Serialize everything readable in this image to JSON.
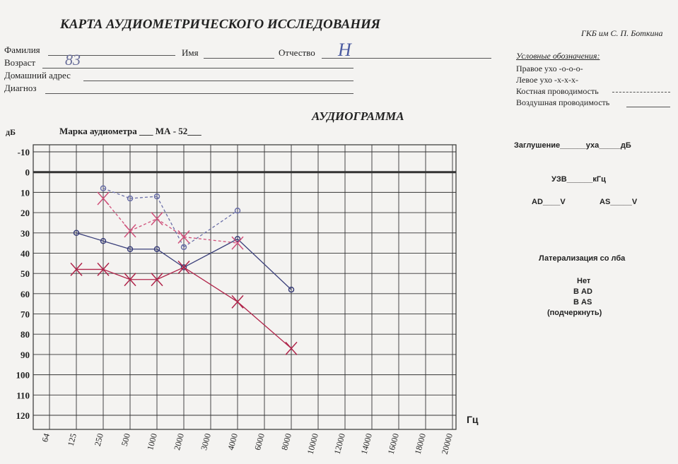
{
  "form": {
    "title": "КАРТА АУДИОМЕТРИЧЕСКОГО ИССЛЕДОВАНИЯ",
    "hospital": "ГКБ им С. П. Боткина",
    "fields": [
      "Фамилия",
      "Имя",
      "Отчество",
      "Возраст",
      "Домашний адрес",
      "Диагноз"
    ],
    "handwritten_age": "83",
    "handwritten_patronymic": "Н",
    "legend_title": "Условные обозначения:",
    "legend": [
      "Правое ухо -о-о-о-",
      "Левое ухо  -х-х-х-",
      "Костная проводимость",
      "Воздушная проводимость"
    ],
    "audiometer": "Марка аудиометра ___ МА - 52___",
    "masking": "Заглушение______уха_____дБ",
    "uzv": "УЗВ______кГц",
    "ad": "AD____V",
    "as": "AS_____V",
    "lateralization": "Латерализация со лба",
    "options": [
      "Нет",
      "В AD",
      "В AS",
      "(подчеркнуть)"
    ]
  },
  "chart_data": {
    "type": "line",
    "title": "АУДИОГРАММА",
    "y_label": "дБ",
    "x_label": "Гц",
    "categories": [
      "64",
      "125",
      "250",
      "500",
      "1000",
      "2000",
      "3000",
      "4000",
      "6000",
      "8000",
      "10000",
      "12000",
      "14000",
      "16000",
      "18000",
      "20000"
    ],
    "ylim": [
      -10,
      120
    ],
    "yticks": [
      -10,
      0,
      10,
      20,
      30,
      40,
      50,
      60,
      70,
      80,
      90,
      100,
      110,
      120
    ],
    "inverted": true,
    "grid": true,
    "series": [
      {
        "color": "#3a3f7a",
        "marker": "o",
        "dash": false,
        "values": [
          null,
          30,
          34,
          38,
          38,
          47,
          null,
          33,
          null,
          58,
          null,
          null,
          null,
          null,
          null,
          null
        ]
      },
      {
        "color": "#6a6fa8",
        "marker": "o",
        "dash": true,
        "values": [
          null,
          null,
          8,
          13,
          12,
          37,
          null,
          19,
          null,
          null,
          null,
          null,
          null,
          null,
          null,
          null
        ]
      },
      {
        "color": "#b0244a",
        "marker": "x",
        "dash": false,
        "values": [
          null,
          48,
          48,
          53,
          53,
          47,
          null,
          64,
          null,
          87,
          null,
          null,
          null,
          null,
          null,
          null
        ]
      },
      {
        "color": "#d0507a",
        "marker": "x",
        "dash": true,
        "values": [
          null,
          null,
          13,
          29,
          23,
          32,
          null,
          35,
          null,
          null,
          null,
          null,
          null,
          null,
          null,
          null
        ]
      }
    ]
  }
}
